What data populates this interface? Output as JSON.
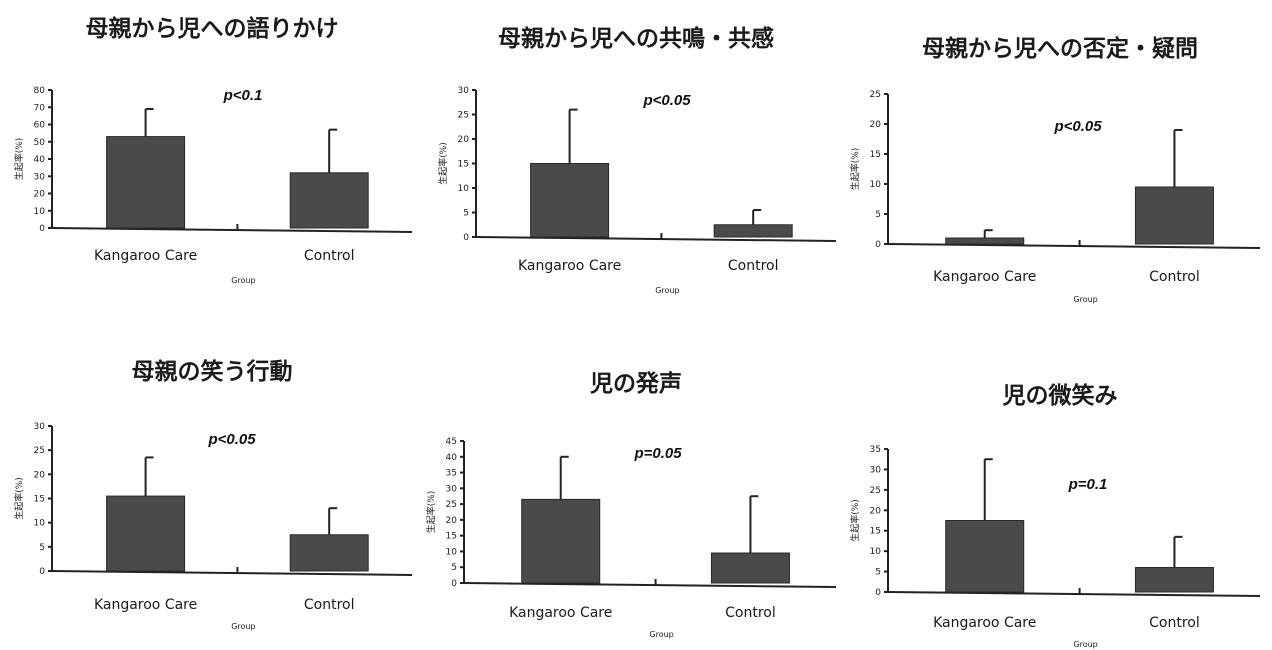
{
  "chart_data": [
    {
      "type": "bar",
      "title": "母親から児への語りかけ",
      "annotation": "p<0.1",
      "ylabel": "生起率(%)",
      "xlabel": "Group",
      "categories": [
        "Kangaroo Care",
        "Control"
      ],
      "values": [
        53,
        32
      ],
      "error_upper": [
        69,
        57
      ],
      "ylim": [
        0,
        80
      ],
      "yticks": [
        0,
        10,
        20,
        30,
        40,
        50,
        60,
        70,
        80
      ]
    },
    {
      "type": "bar",
      "title": "母親から児への共鳴・共感",
      "annotation": "p<0.05",
      "ylabel": "生起率(%)",
      "xlabel": "Group",
      "categories": [
        "Kangaroo Care",
        "Control"
      ],
      "values": [
        15,
        2.5
      ],
      "error_upper": [
        26,
        5.5
      ],
      "ylim": [
        0,
        30
      ],
      "yticks": [
        0,
        5,
        10,
        15,
        20,
        25,
        30
      ]
    },
    {
      "type": "bar",
      "title": "母親から児への否定・疑問",
      "annotation": "p<0.05",
      "ylabel": "生起率(%)",
      "xlabel": "Group",
      "categories": [
        "Kangaroo Care",
        "Control"
      ],
      "values": [
        1,
        9.5
      ],
      "error_upper": [
        2.3,
        19
      ],
      "ylim": [
        0,
        25
      ],
      "yticks": [
        0,
        5,
        10,
        15,
        20,
        25
      ]
    },
    {
      "type": "bar",
      "title": "母親の笑う行動",
      "annotation": "p<0.05",
      "ylabel": "生起率(%)",
      "xlabel": "Group",
      "categories": [
        "Kangaroo Care",
        "Control"
      ],
      "values": [
        15.5,
        7.5
      ],
      "error_upper": [
        23.5,
        13
      ],
      "ylim": [
        0,
        30
      ],
      "yticks": [
        0,
        5,
        10,
        15,
        20,
        25,
        30
      ]
    },
    {
      "type": "bar",
      "title": "児の発声",
      "annotation": "p=0.05",
      "ylabel": "生起率(%)",
      "xlabel": "Group",
      "categories": [
        "Kangaroo Care",
        "Control"
      ],
      "values": [
        26.5,
        9.5
      ],
      "error_upper": [
        40,
        27.5
      ],
      "ylim": [
        0,
        45
      ],
      "yticks": [
        0,
        5,
        10,
        15,
        20,
        25,
        30,
        35,
        40,
        45
      ]
    },
    {
      "type": "bar",
      "title": "児の微笑み",
      "annotation": "p=0.1",
      "ylabel": "生起率(%)",
      "xlabel": "Group",
      "categories": [
        "Kangaroo Care",
        "Control"
      ],
      "values": [
        17.5,
        6
      ],
      "error_upper": [
        32.5,
        13.5
      ],
      "ylim": [
        0,
        35
      ],
      "yticks": [
        0,
        5,
        10,
        15,
        20,
        25,
        30,
        35
      ]
    }
  ]
}
